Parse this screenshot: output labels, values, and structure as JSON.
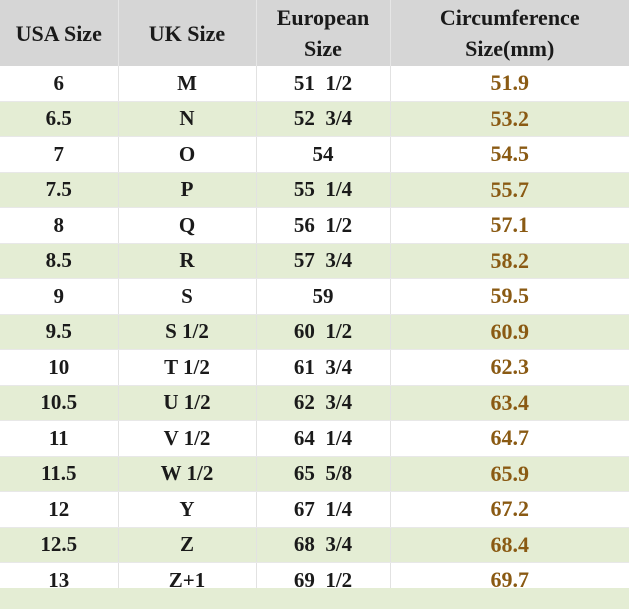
{
  "headers": {
    "usa": [
      "USA  Size"
    ],
    "uk": [
      "UK  Size"
    ],
    "european": [
      "European",
      "Size"
    ],
    "circumference": [
      "Circumference",
      "Size(mm)"
    ]
  },
  "colors": {
    "header_bg": "#d6d6d6",
    "stripe_bg": "#e4edd4",
    "circumference_text": "#8a5a13"
  },
  "rows": [
    {
      "usa": "6",
      "uk": "M",
      "eu": "51  1/2",
      "circ": "51.9"
    },
    {
      "usa": "6.5",
      "uk": "N",
      "eu": "52  3/4",
      "circ": "53.2"
    },
    {
      "usa": "7",
      "uk": "O",
      "eu": "54",
      "circ": "54.5"
    },
    {
      "usa": "7.5",
      "uk": "P",
      "eu": "55  1/4",
      "circ": "55.7"
    },
    {
      "usa": "8",
      "uk": "Q",
      "eu": "56  1/2",
      "circ": "57.1"
    },
    {
      "usa": "8.5",
      "uk": "R",
      "eu": "57  3/4",
      "circ": "58.2"
    },
    {
      "usa": "9",
      "uk": "S",
      "eu": "59",
      "circ": "59.5"
    },
    {
      "usa": "9.5",
      "uk": "S 1/2",
      "eu": "60  1/2",
      "circ": "60.9"
    },
    {
      "usa": "10",
      "uk": "T 1/2",
      "eu": "61  3/4",
      "circ": "62.3"
    },
    {
      "usa": "10.5",
      "uk": "U 1/2",
      "eu": "62  3/4",
      "circ": "63.4"
    },
    {
      "usa": "11",
      "uk": "V 1/2",
      "eu": "64  1/4",
      "circ": "64.7"
    },
    {
      "usa": "11.5",
      "uk": "W 1/2",
      "eu": "65  5/8",
      "circ": "65.9"
    },
    {
      "usa": "12",
      "uk": "Y",
      "eu": "67  1/4",
      "circ": "67.2"
    },
    {
      "usa": "12.5",
      "uk": "Z",
      "eu": "68  3/4",
      "circ": "68.4"
    },
    {
      "usa": "13",
      "uk": "Z+1",
      "eu": "69  1/2",
      "circ": "69.7"
    }
  ]
}
